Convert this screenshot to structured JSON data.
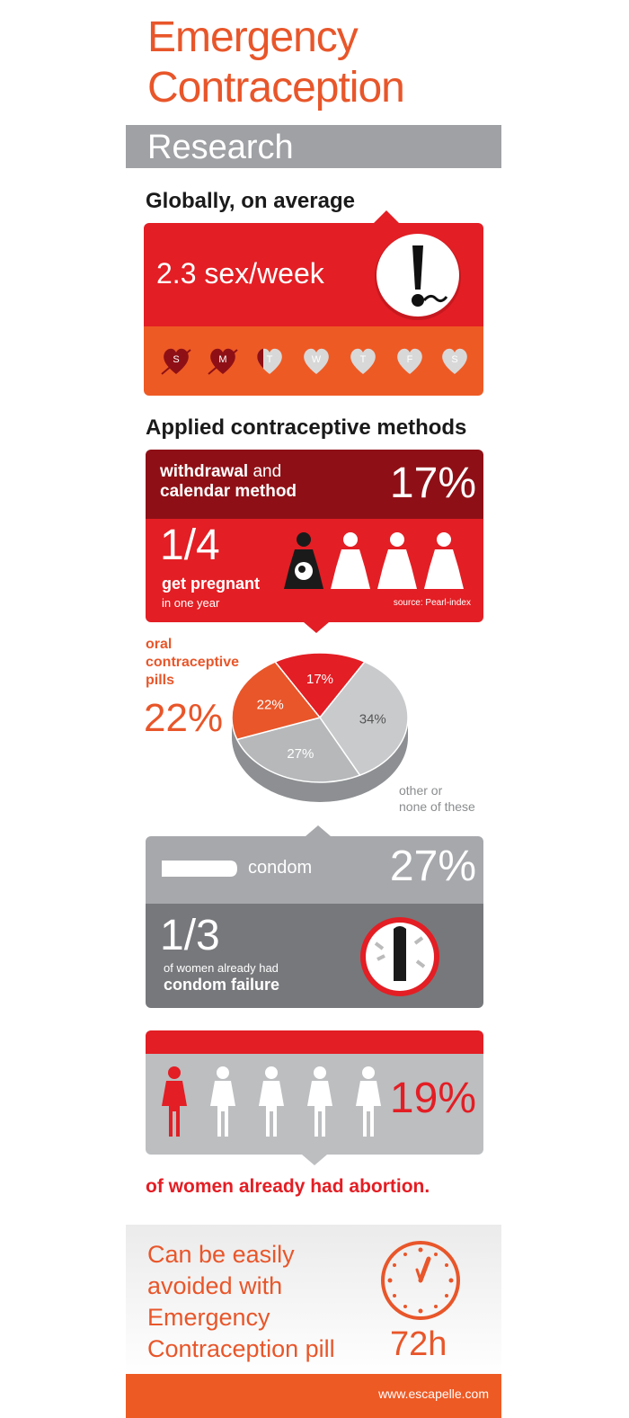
{
  "header": {
    "title_line1": "Emergency",
    "title_line2": "Contraception",
    "section": "Research"
  },
  "global": {
    "heading": "Globally, on average",
    "stat": "2.3 sex/week",
    "days": [
      "S",
      "M",
      "T",
      "W",
      "T",
      "F",
      "S"
    ],
    "active_days": 2.3
  },
  "methods": {
    "heading": "Applied contraceptive methods",
    "withdrawal": {
      "label_bold": "withdrawal",
      "label_rest": " and",
      "label_line2": "calendar method",
      "percent": "17%",
      "fraction": "1/4",
      "caption_bold": "get pregnant",
      "caption_small": "in one year",
      "source": "source: Pearl-index"
    },
    "oral": {
      "label_line1": "oral",
      "label_line2": "contraceptive",
      "label_line3": "pills",
      "percent": "22%"
    },
    "other_label_line1": "other or",
    "other_label_line2": "none of these",
    "condom": {
      "label": "condom",
      "percent": "27%",
      "fraction": "1/3",
      "caption_small": "of women already had",
      "caption_bold": "condom failure"
    }
  },
  "chart_data": {
    "type": "pie",
    "title": "",
    "categories": [
      "withdrawal and calendar method",
      "other or none of these",
      "condom",
      "oral contraceptive pills"
    ],
    "values": [
      17,
      34,
      27,
      22
    ],
    "labels": [
      "17%",
      "34%",
      "27%",
      "22%"
    ],
    "colors": [
      "#e31e24",
      "#c9cacc",
      "#b6b8ba",
      "#e8562a"
    ]
  },
  "abortion": {
    "percent": "19%",
    "caption": "of women already had abortion."
  },
  "footer": {
    "line1": "Can be easily",
    "line2": "avoided with",
    "line3": "Emergency",
    "line4": "Contraception pill",
    "hours": "72h",
    "url": "www.escapelle.com"
  },
  "colors": {
    "accent_orange": "#ee5a24",
    "accent_red": "#e31e24",
    "dark_red": "#8e1016",
    "grey": "#9fa1a4"
  }
}
